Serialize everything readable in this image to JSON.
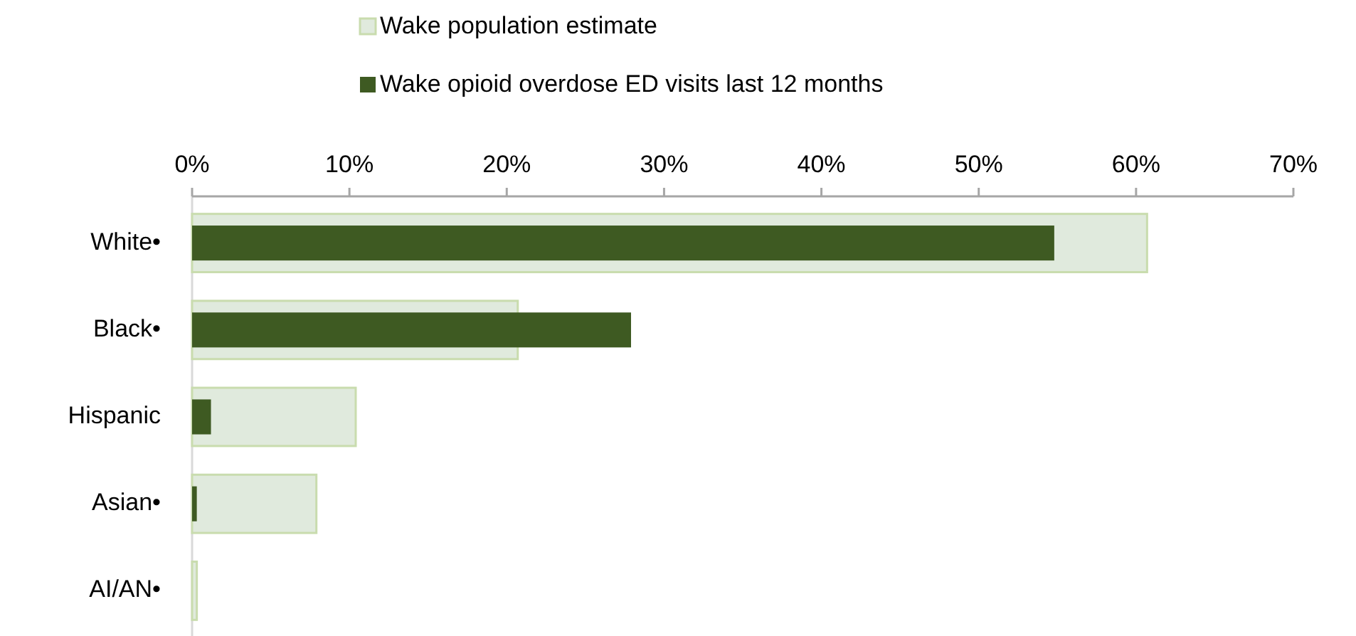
{
  "chart_data": {
    "type": "bar",
    "orientation": "horizontal",
    "categories": [
      "White•",
      "Black•",
      "Hispanic",
      "Asian•",
      "AI/AN•"
    ],
    "series": [
      {
        "name": "Wake population estimate",
        "color": "#e0eadd",
        "values": [
          60.7,
          20.7,
          10.4,
          7.9,
          0.3
        ]
      },
      {
        "name": "Wake opioid overdose ED visits last 12 months",
        "color": "#3e5a22",
        "values": [
          54.8,
          27.9,
          1.2,
          0.3,
          0
        ]
      }
    ],
    "xlim": [
      0,
      70
    ],
    "xticks": [
      {
        "value": 0,
        "label": "0%"
      },
      {
        "value": 10,
        "label": "10%"
      },
      {
        "value": 20,
        "label": "20%"
      },
      {
        "value": 30,
        "label": "30%"
      },
      {
        "value": 40,
        "label": "40%"
      },
      {
        "value": 50,
        "label": "50%"
      },
      {
        "value": 60,
        "label": "60%"
      },
      {
        "value": 70,
        "label": "70%"
      }
    ],
    "grid": false,
    "legend": "top"
  }
}
